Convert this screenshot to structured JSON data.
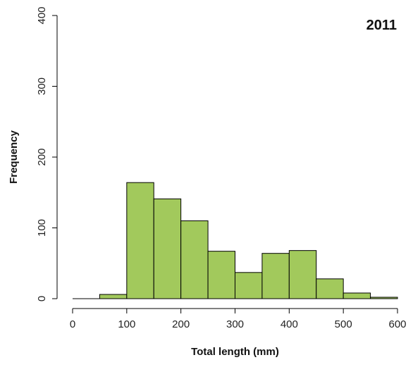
{
  "chart_data": {
    "type": "bar",
    "title": "2011",
    "xlabel": "Total length (mm)",
    "ylabel": "Frequency",
    "bins": [
      {
        "start": 0,
        "end": 50,
        "count": 0
      },
      {
        "start": 50,
        "end": 100,
        "count": 6
      },
      {
        "start": 100,
        "end": 150,
        "count": 164
      },
      {
        "start": 150,
        "end": 200,
        "count": 141
      },
      {
        "start": 200,
        "end": 250,
        "count": 110
      },
      {
        "start": 250,
        "end": 300,
        "count": 67
      },
      {
        "start": 300,
        "end": 350,
        "count": 37
      },
      {
        "start": 350,
        "end": 400,
        "count": 64
      },
      {
        "start": 400,
        "end": 450,
        "count": 68
      },
      {
        "start": 450,
        "end": 500,
        "count": 28
      },
      {
        "start": 500,
        "end": 550,
        "count": 8
      },
      {
        "start": 550,
        "end": 600,
        "count": 2
      }
    ],
    "xlim": [
      0,
      600
    ],
    "ylim": [
      0,
      400
    ],
    "xticks": [
      0,
      100,
      200,
      300,
      400,
      500,
      600
    ],
    "yticks": [
      0,
      100,
      200,
      300,
      400
    ],
    "bar_color": "#a2c95c",
    "bar_edge_color": "#000000",
    "grid": false
  }
}
